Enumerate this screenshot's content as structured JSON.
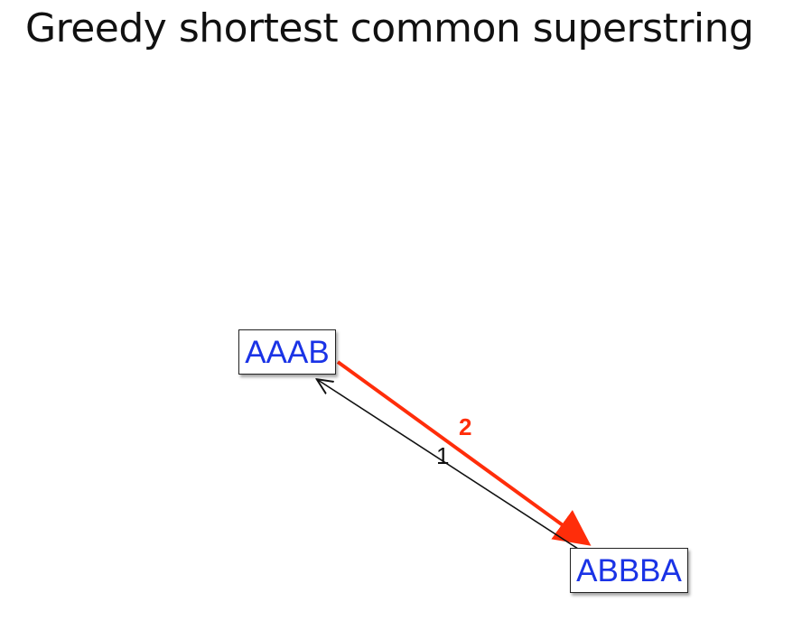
{
  "title": "Greedy shortest common superstring",
  "nodes": {
    "aaab": "AAAB",
    "abbba": "ABBBA"
  },
  "edges": {
    "red": {
      "label": "2",
      "color": "#ff2d0a"
    },
    "black": {
      "label": "1",
      "color": "#111111"
    }
  },
  "colors": {
    "node_text": "#1a33e6"
  }
}
